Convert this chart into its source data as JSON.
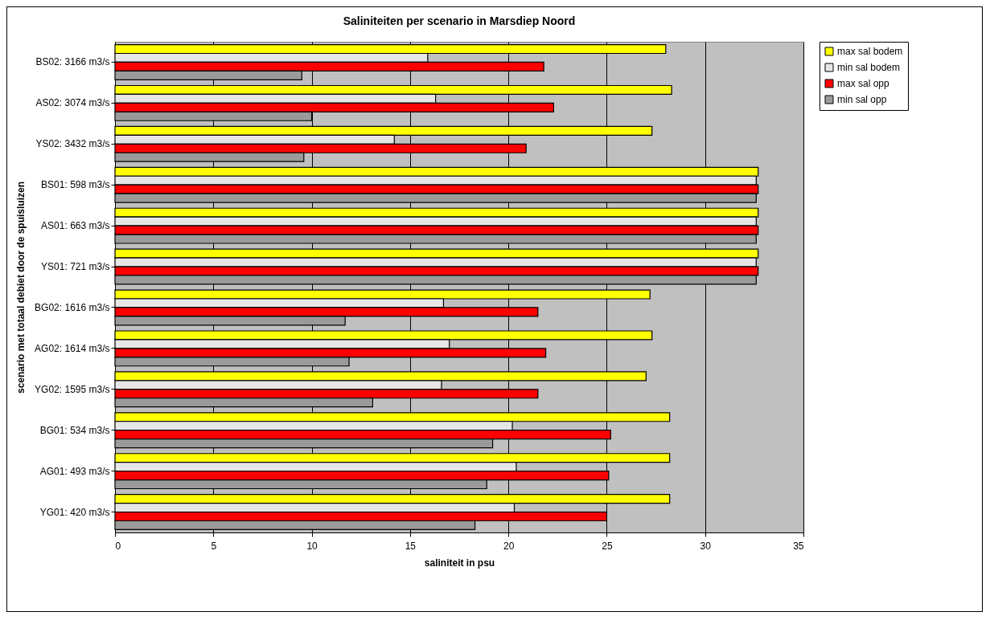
{
  "chart_data": {
    "type": "bar",
    "orientation": "horizontal",
    "title": "Saliniteiten per scenario in Marsdiep Noord",
    "xlabel": "saliniteit in psu",
    "ylabel": "scenario met totaal debiet door de spuisluizen",
    "categories": [
      "BS02: 3166 m3/s",
      "AS02: 3074 m3/s",
      "YS02: 3432 m3/s",
      "BS01: 598 m3/s",
      "AS01: 663 m3/s",
      "YS01: 721 m3/s",
      "BG02: 1616 m3/s",
      "AG02: 1614 m3/s",
      "YG02: 1595 m3/s",
      "BG01: 534 m3/s",
      "AG01: 493 m3/s",
      "YG01: 420 m3/s"
    ],
    "series": [
      {
        "name": "max sal bodem",
        "color": "#ffff00",
        "values": [
          28.0,
          28.3,
          27.3,
          32.7,
          32.7,
          32.7,
          27.2,
          27.3,
          27.0,
          28.2,
          28.2,
          28.2
        ]
      },
      {
        "name": "min sal bodem",
        "color": "#e6e6e6",
        "values": [
          15.9,
          16.3,
          14.2,
          32.6,
          32.6,
          32.6,
          16.7,
          17.0,
          16.6,
          20.2,
          20.4,
          20.3
        ]
      },
      {
        "name": "max sal opp",
        "color": "#ff0000",
        "values": [
          21.8,
          22.3,
          20.9,
          32.7,
          32.7,
          32.7,
          21.5,
          21.9,
          21.5,
          25.2,
          25.1,
          25.0
        ]
      },
      {
        "name": "min sal opp",
        "color": "#9a9a9a",
        "values": [
          9.5,
          10.0,
          9.6,
          32.6,
          32.6,
          32.6,
          11.7,
          11.9,
          13.1,
          19.2,
          18.9,
          18.3
        ]
      }
    ],
    "xlim": [
      0,
      35
    ],
    "xticks": [
      0,
      5,
      10,
      15,
      20,
      25,
      30,
      35
    ],
    "grid": "x",
    "legend": "right"
  }
}
